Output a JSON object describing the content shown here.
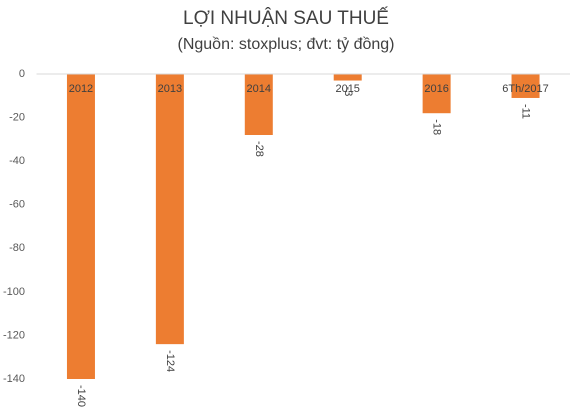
{
  "chart_data": {
    "type": "bar",
    "title": "LỢI NHUẬN SAU THUẾ",
    "subtitle": "(Nguồn: stoxplus; đvt: tỷ đồng)",
    "categories": [
      "2012",
      "2013",
      "2014",
      "2015",
      "2016",
      "6Th/2017"
    ],
    "values": [
      -140,
      -124,
      -28,
      -3,
      -18,
      -11
    ],
    "color": "#ed7d31",
    "ylim": [
      -140,
      0
    ],
    "yticks": [
      0,
      -20,
      -40,
      -60,
      -80,
      -100,
      -120,
      -140
    ],
    "grid": false
  }
}
